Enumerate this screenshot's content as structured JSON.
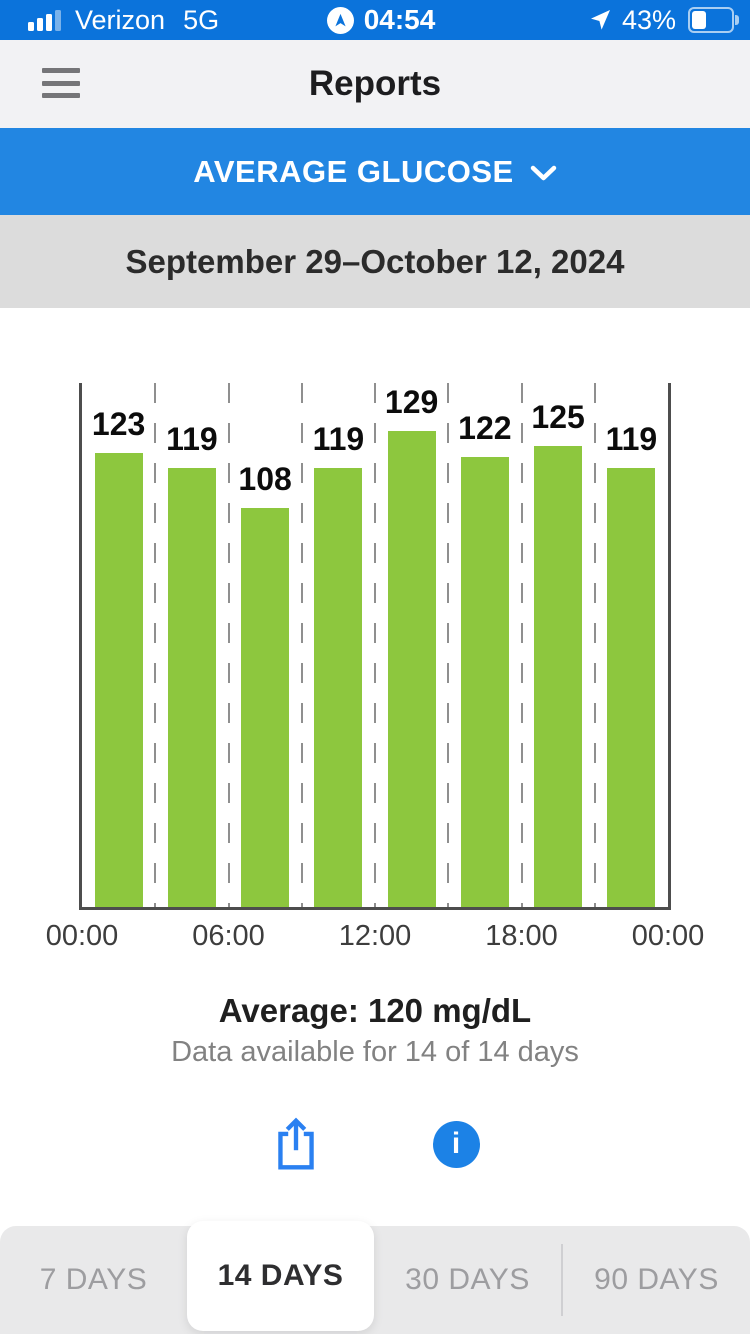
{
  "status_bar": {
    "carrier": "Verizon",
    "network": "5G",
    "time": "04:54",
    "battery_percent": "43%",
    "battery_level": 43,
    "accent_color": "#0b73db"
  },
  "header": {
    "title": "Reports"
  },
  "metric_selector": {
    "label": "AVERAGE GLUCOSE"
  },
  "date_range": {
    "label": "September 29–October 12, 2024"
  },
  "chart_data": {
    "type": "bar",
    "title": "Average Glucose",
    "categories": [
      "00:00–03:00",
      "03:00–06:00",
      "06:00–09:00",
      "09:00–12:00",
      "12:00–15:00",
      "15:00–18:00",
      "18:00–21:00",
      "21:00–00:00"
    ],
    "values": [
      123,
      119,
      108,
      119,
      129,
      122,
      125,
      119
    ],
    "x_tick_labels": [
      "00:00",
      "06:00",
      "12:00",
      "18:00",
      "00:00"
    ],
    "xlabel": "",
    "ylabel": "mg/dL",
    "ylim": [
      0,
      142
    ],
    "bar_color": "#8dc73e",
    "grid": "dashed-vertical-separators",
    "legend": "none"
  },
  "summary": {
    "average_label": "Average: 120 mg/dL",
    "availability": "Data available for 14 of 14 days"
  },
  "actions": {
    "share_color": "#2a80f1",
    "info_color": "#1c82e6",
    "info_glyph": "i"
  },
  "period_tabs": {
    "items": [
      {
        "label": "7 DAYS",
        "active": false
      },
      {
        "label": "14 DAYS",
        "active": true
      },
      {
        "label": "30 DAYS",
        "active": false
      },
      {
        "label": "90 DAYS",
        "active": false
      }
    ]
  }
}
